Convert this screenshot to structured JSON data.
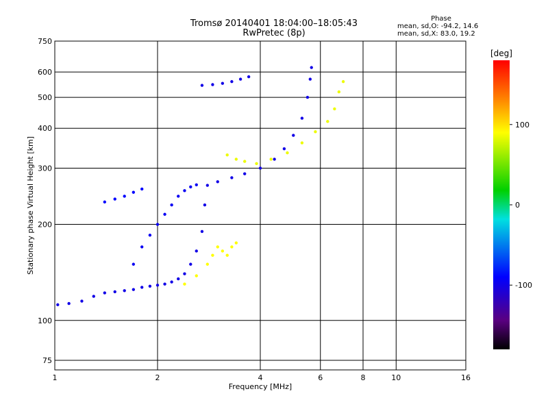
{
  "chart_data": {
    "type": "scatter",
    "title": "Tromsø 20140401 18:04:00–18:05:43",
    "subtitle": "RwPretec (8p)",
    "xlabel": "Frequency [MHz]",
    "ylabel": "Stationary phase Virtual Height [km]",
    "x_scale": "log",
    "y_scale": "log",
    "xlim": [
      1,
      16
    ],
    "ylim": [
      70,
      750
    ],
    "x_ticks": [
      1,
      2,
      4,
      6,
      8,
      10,
      16
    ],
    "y_ticks": [
      75,
      100,
      200,
      300,
      400,
      500,
      600,
      750
    ],
    "grid": true,
    "colorbar": {
      "label": "[deg]",
      "range": [
        -180,
        180
      ],
      "ticks": [
        100,
        0,
        -100
      ],
      "colormap": "rainbow (black-purple-blue-cyan-green-yellow-red)"
    },
    "stats": {
      "heading": "Phase",
      "o_mode": "mean, sd,O: -94.2, 14.6",
      "x_mode": "mean, sd,X:  83.0, 19.2"
    },
    "traces": [
      {
        "mode": "O",
        "phase_deg": -100,
        "points": [
          [
            1.02,
            112
          ],
          [
            1.1,
            113
          ],
          [
            1.2,
            115
          ],
          [
            1.3,
            119
          ],
          [
            1.4,
            122
          ],
          [
            1.5,
            123
          ],
          [
            1.6,
            124
          ],
          [
            1.7,
            125
          ],
          [
            1.8,
            127
          ],
          [
            1.9,
            128
          ],
          [
            2.0,
            129
          ],
          [
            2.1,
            130
          ],
          [
            2.2,
            132
          ],
          [
            2.3,
            135
          ],
          [
            2.4,
            140
          ],
          [
            2.5,
            150
          ],
          [
            2.6,
            165
          ],
          [
            2.7,
            190
          ],
          [
            2.75,
            230
          ],
          [
            2.8,
            265
          ],
          [
            3.0,
            272
          ],
          [
            3.3,
            280
          ],
          [
            3.6,
            288
          ],
          [
            4.0,
            300
          ],
          [
            4.4,
            320
          ],
          [
            4.7,
            345
          ],
          [
            5.0,
            380
          ],
          [
            5.3,
            430
          ],
          [
            5.5,
            500
          ],
          [
            5.6,
            570
          ],
          [
            5.65,
            620
          ]
        ]
      },
      {
        "mode": "O",
        "phase_deg": -95,
        "points": [
          [
            1.7,
            150
          ],
          [
            1.8,
            170
          ],
          [
            1.9,
            185
          ],
          [
            2.0,
            200
          ],
          [
            2.1,
            215
          ],
          [
            2.2,
            230
          ],
          [
            2.3,
            245
          ],
          [
            2.4,
            255
          ],
          [
            2.5,
            262
          ],
          [
            2.6,
            266
          ]
        ]
      },
      {
        "mode": "O",
        "phase_deg": -90,
        "points": [
          [
            1.4,
            235
          ],
          [
            1.5,
            240
          ],
          [
            1.6,
            245
          ],
          [
            1.7,
            252
          ],
          [
            1.8,
            258
          ]
        ]
      },
      {
        "mode": "O",
        "phase_deg": -100,
        "points": [
          [
            2.7,
            545
          ],
          [
            2.9,
            548
          ],
          [
            3.1,
            553
          ],
          [
            3.3,
            560
          ],
          [
            3.5,
            570
          ],
          [
            3.7,
            580
          ]
        ]
      },
      {
        "mode": "X",
        "phase_deg": 90,
        "points": [
          [
            2.4,
            130
          ],
          [
            2.6,
            138
          ],
          [
            2.8,
            150
          ],
          [
            2.9,
            160
          ],
          [
            3.0,
            170
          ],
          [
            3.1,
            165
          ],
          [
            3.2,
            160
          ],
          [
            3.3,
            170
          ],
          [
            3.4,
            175
          ]
        ]
      },
      {
        "mode": "X",
        "phase_deg": 85,
        "points": [
          [
            3.2,
            330
          ],
          [
            3.4,
            320
          ],
          [
            3.6,
            315
          ],
          [
            3.9,
            310
          ],
          [
            4.3,
            320
          ],
          [
            4.8,
            335
          ],
          [
            5.3,
            360
          ],
          [
            5.8,
            390
          ],
          [
            6.3,
            420
          ],
          [
            6.6,
            460
          ],
          [
            6.8,
            520
          ],
          [
            7.0,
            560
          ]
        ]
      }
    ]
  }
}
